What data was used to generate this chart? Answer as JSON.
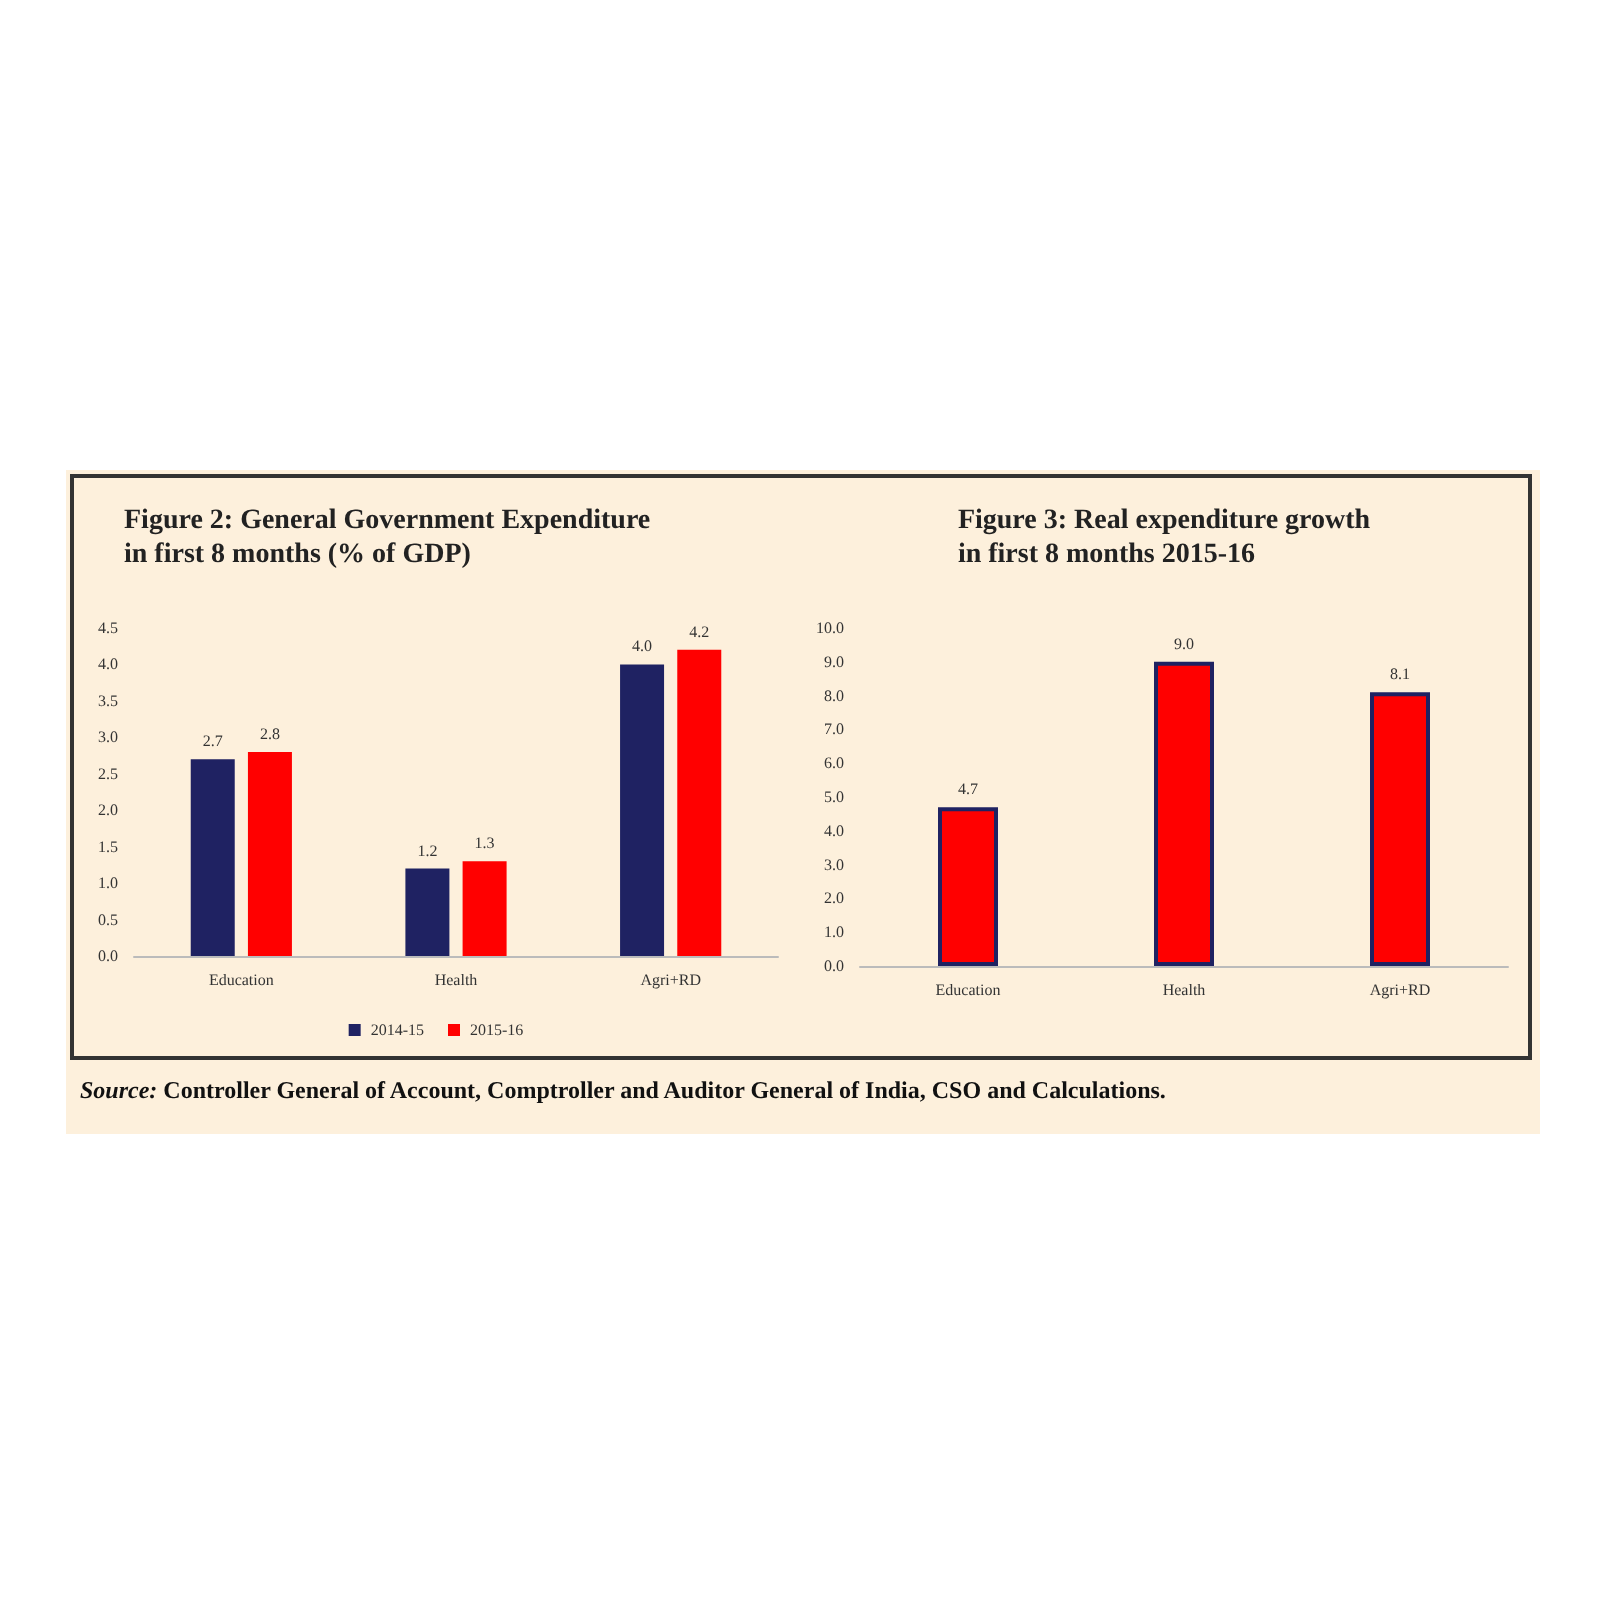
{
  "chart_data": [
    {
      "type": "bar",
      "title": "Figure 2: General Government Expenditure\nin first 8 months (% of GDP)",
      "categories": [
        "Education",
        "Health",
        "Agri+RD"
      ],
      "series": [
        {
          "name": "2014-15",
          "color": "#1f2262",
          "values": [
            2.7,
            1.2,
            4.0
          ],
          "value_labels": [
            "2.7",
            "1.2",
            "4.0"
          ]
        },
        {
          "name": "2015-16",
          "color": "#ff0000",
          "values": [
            2.8,
            1.3,
            4.2
          ],
          "value_labels": [
            "2.8",
            "1.3",
            "4.2"
          ]
        }
      ],
      "ylim": [
        0,
        4.5
      ],
      "yticks": [
        {
          "value": 0,
          "label": "0.0"
        },
        {
          "value": 0.5,
          "label": "0.5"
        },
        {
          "value": 1,
          "label": "1.0"
        },
        {
          "value": 1.5,
          "label": "1.5"
        },
        {
          "value": 2,
          "label": "2.0"
        },
        {
          "value": 2.5,
          "label": "2.5"
        },
        {
          "value": 3,
          "label": "3.0"
        },
        {
          "value": 3.5,
          "label": "3.5"
        },
        {
          "value": 4,
          "label": "4.0"
        },
        {
          "value": 4.5,
          "label": "4.5"
        }
      ],
      "grid": false,
      "legend": "bottom",
      "annotations": [
        "Source: Controller General of Account, Comptroller and Auditor General of India, CSO and Calculations."
      ]
    },
    {
      "type": "bar",
      "title": "Figure 3: Real expenditure growth\nin first 8 months 2015-16",
      "categories": [
        "Education",
        "Health",
        "Agri+RD"
      ],
      "series": [
        {
          "color": "#ff0000",
          "values": [
            4.7,
            9.0,
            8.1
          ],
          "value_labels": [
            "4.7",
            "9.0",
            "8.1"
          ]
        }
      ],
      "ylim": [
        0,
        10
      ],
      "yticks": [
        {
          "value": 0,
          "label": "0.0"
        },
        {
          "value": 1,
          "label": "1.0"
        },
        {
          "value": 2,
          "label": "2.0"
        },
        {
          "value": 3,
          "label": "3.0"
        },
        {
          "value": 4,
          "label": "4.0"
        },
        {
          "value": 5,
          "label": "5.0"
        },
        {
          "value": 6,
          "label": "6.0"
        },
        {
          "value": 7,
          "label": "7.0"
        },
        {
          "value": 8,
          "label": "8.0"
        },
        {
          "value": 9,
          "label": "9.0"
        },
        {
          "value": 10,
          "label": "10.0"
        }
      ],
      "grid": false,
      "legend": false
    }
  ]
}
